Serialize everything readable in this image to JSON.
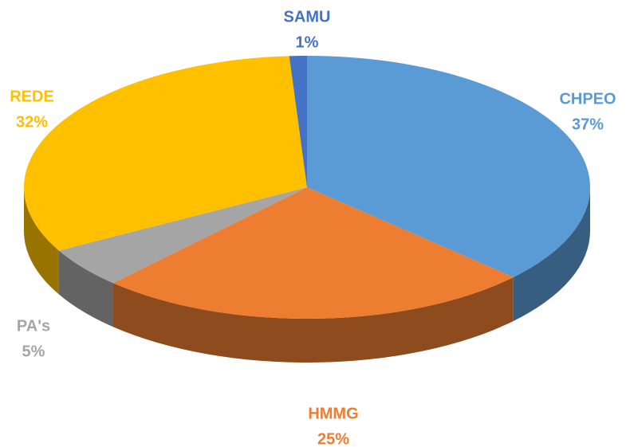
{
  "chart_data": {
    "type": "pie",
    "categories": [
      "CHPEO",
      "HMMG",
      "PA's",
      "REDE",
      "SAMU"
    ],
    "values": [
      37,
      25,
      5,
      32,
      1
    ],
    "value_labels": [
      "37%",
      "25%",
      "5%",
      "32%",
      "1%"
    ],
    "colors": [
      "#5b9bd5",
      "#ed7d31",
      "#a5a5a5",
      "#ffc000",
      "#4472c4"
    ]
  }
}
